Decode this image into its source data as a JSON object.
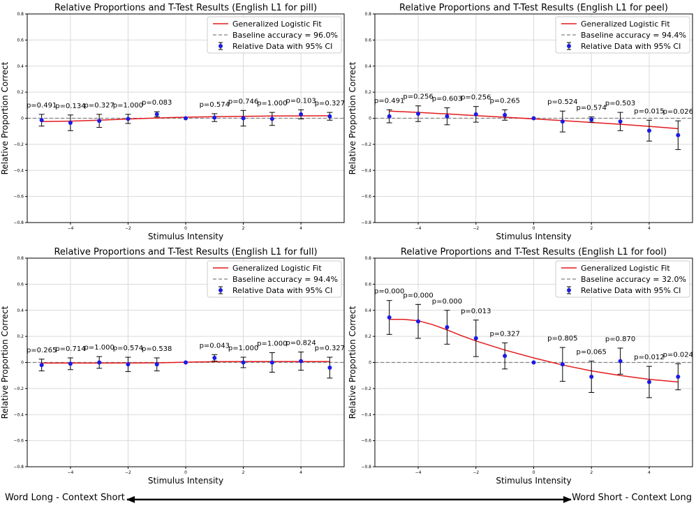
{
  "colors": {
    "fit": "#e31a1c",
    "baseline": "#808080",
    "points": "#1a1ae6",
    "grid": "#d9d9d9",
    "arrow": "#000000"
  },
  "footer": {
    "left_label": "Word Long - Context Short",
    "right_label": "Word Short - Context Long"
  },
  "chart_data": [
    {
      "type": "scatter",
      "title": "Relative Proportions and T-Test Results (English L1 for pill)",
      "xlabel": "Stimulus Intensity",
      "ylabel": "Relative Proportion Correct",
      "xlim": [
        -5.5,
        5.5
      ],
      "ylim": [
        -0.8,
        0.8
      ],
      "xticks": [
        -4,
        -2,
        0,
        2,
        4
      ],
      "yticks": [
        -0.8,
        -0.6,
        -0.4,
        -0.2,
        0.0,
        0.2,
        0.4,
        0.6,
        0.8
      ],
      "legend": {
        "fit": "Generalized Logistic Fit",
        "baseline": "Baseline accuracy = 96.0%",
        "data": "Relative Data with 95% CI"
      },
      "x": [
        -5,
        -4,
        -3,
        -2,
        -1,
        0,
        1,
        2,
        3,
        4,
        5
      ],
      "y": [
        -0.015,
        -0.035,
        -0.02,
        -0.005,
        0.03,
        0.0,
        0.005,
        0.0,
        -0.005,
        0.03,
        0.015
      ],
      "ci": [
        0.045,
        0.06,
        0.05,
        0.035,
        0.02,
        0.0,
        0.03,
        0.06,
        0.05,
        0.035,
        0.03
      ],
      "p_labels": [
        "p=0.491",
        "p=0.134",
        "p=0.327",
        "p=1.000",
        "p=0.083",
        "",
        "p=0.574",
        "p=0.746",
        "p=1.000",
        "p=0.103",
        "p=0.327"
      ],
      "fit": [
        [
          -5,
          -0.025
        ],
        [
          -4,
          -0.022
        ],
        [
          -3,
          -0.015
        ],
        [
          -2,
          -0.006
        ],
        [
          -1,
          0.002
        ],
        [
          0,
          0.008
        ],
        [
          1,
          0.012
        ],
        [
          2,
          0.015
        ],
        [
          3,
          0.017
        ],
        [
          4,
          0.018
        ],
        [
          5,
          0.019
        ]
      ]
    },
    {
      "type": "scatter",
      "title": "Relative Proportions and T-Test Results (English L1 for peel)",
      "xlabel": "Stimulus Intensity",
      "ylabel": "Relative Proportion Correct",
      "xlim": [
        -5.5,
        5.5
      ],
      "ylim": [
        -0.8,
        0.8
      ],
      "xticks": [
        -4,
        -2,
        0,
        2,
        4
      ],
      "yticks": [
        -0.8,
        -0.6,
        -0.4,
        -0.2,
        0.0,
        0.2,
        0.4,
        0.6,
        0.8
      ],
      "legend": {
        "fit": "Generalized Logistic Fit",
        "baseline": "Baseline accuracy = 94.4%",
        "data": "Relative Data with 95% CI"
      },
      "x": [
        -5,
        -4,
        -3,
        -2,
        -1,
        0,
        1,
        2,
        3,
        4,
        5
      ],
      "y": [
        0.015,
        0.035,
        0.015,
        0.03,
        0.025,
        0.0,
        -0.025,
        -0.01,
        -0.025,
        -0.095,
        -0.13
      ],
      "ci": [
        0.05,
        0.06,
        0.065,
        0.06,
        0.04,
        0.0,
        0.08,
        0.02,
        0.07,
        0.08,
        0.11
      ],
      "p_labels": [
        "p=0.491",
        "p=0.256",
        "p=0.603",
        "p=0.256",
        "p=0.265",
        "",
        "p=0.524",
        "p=0.574",
        "p=0.503",
        "p=0.015",
        "p=0.026"
      ],
      "fit": [
        [
          -5,
          0.055
        ],
        [
          -4,
          0.045
        ],
        [
          -3,
          0.033
        ],
        [
          -2,
          0.02
        ],
        [
          -1,
          0.008
        ],
        [
          0,
          -0.005
        ],
        [
          1,
          -0.018
        ],
        [
          2,
          -0.032
        ],
        [
          3,
          -0.046
        ],
        [
          4,
          -0.062
        ],
        [
          5,
          -0.08
        ]
      ]
    },
    {
      "type": "scatter",
      "title": "Relative Proportions and T-Test Results (English L1 for full)",
      "xlabel": "Stimulus Intensity",
      "ylabel": "Relative Proportion Correct",
      "xlim": [
        -5.5,
        5.5
      ],
      "ylim": [
        -0.8,
        0.8
      ],
      "xticks": [
        -4,
        -2,
        0,
        2,
        4
      ],
      "yticks": [
        -0.8,
        -0.6,
        -0.4,
        -0.2,
        0.0,
        0.2,
        0.4,
        0.6,
        0.8
      ],
      "legend": {
        "fit": "Generalized Logistic Fit",
        "baseline": "Baseline accuracy = 94.4%",
        "data": "Relative Data with 95% CI"
      },
      "x": [
        -5,
        -4,
        -3,
        -2,
        -1,
        0,
        1,
        2,
        3,
        4,
        5
      ],
      "y": [
        -0.02,
        -0.01,
        0.0,
        -0.015,
        -0.015,
        0.0,
        0.035,
        0.0,
        0.0,
        0.01,
        -0.04
      ],
      "ci": [
        0.045,
        0.045,
        0.045,
        0.055,
        0.05,
        0.0,
        0.025,
        0.04,
        0.075,
        0.07,
        0.08
      ],
      "p_labels": [
        "p=0.265",
        "p=0.714",
        "p=1.000",
        "p=0.574",
        "p=0.538",
        "",
        "p=0.043",
        "p=1.000",
        "p=1.000",
        "p=0.824",
        "p=0.327"
      ],
      "fit": [
        [
          -5,
          -0.005
        ],
        [
          -4,
          -0.005
        ],
        [
          -3,
          -0.005
        ],
        [
          -2,
          -0.004
        ],
        [
          -1,
          -0.003
        ],
        [
          0,
          0.002
        ],
        [
          1,
          0.006
        ],
        [
          2,
          0.007
        ],
        [
          3,
          0.007
        ],
        [
          4,
          0.007
        ],
        [
          5,
          0.007
        ]
      ]
    },
    {
      "type": "scatter",
      "title": "Relative Proportions and T-Test Results (English L1 for fool)",
      "xlabel": "Stimulus Intensity",
      "ylabel": "Relative Proportion Correct",
      "xlim": [
        -5.5,
        5.5
      ],
      "ylim": [
        -0.8,
        0.8
      ],
      "xticks": [
        -4,
        -2,
        0,
        2,
        4
      ],
      "yticks": [
        -0.8,
        -0.6,
        -0.4,
        -0.2,
        0.0,
        0.2,
        0.4,
        0.6,
        0.8
      ],
      "legend": {
        "fit": "Generalized Logistic Fit",
        "baseline": "Baseline accuracy = 32.0%",
        "data": "Relative Data with 95% CI"
      },
      "x": [
        -5,
        -4,
        -3,
        -2,
        -1,
        0,
        1,
        2,
        3,
        4,
        5
      ],
      "y": [
        0.345,
        0.315,
        0.27,
        0.185,
        0.05,
        0.0,
        -0.015,
        -0.11,
        0.01,
        -0.15,
        -0.11
      ],
      "ci": [
        0.13,
        0.13,
        0.13,
        0.14,
        0.1,
        0.0,
        0.13,
        0.12,
        0.1,
        0.12,
        0.1
      ],
      "p_labels": [
        "p=0.000",
        "p=0.000",
        "p=0.000",
        "p=0.013",
        "p=0.327",
        "",
        "p=0.805",
        "p=0.065",
        "p=0.870",
        "p=0.012",
        "p=0.024"
      ],
      "fit": [
        [
          -5,
          0.33
        ],
        [
          -4.5,
          0.33
        ],
        [
          -4,
          0.32
        ],
        [
          -3.5,
          0.29
        ],
        [
          -3,
          0.25
        ],
        [
          -2.5,
          0.205
        ],
        [
          -2,
          0.165
        ],
        [
          -1,
          0.095
        ],
        [
          0,
          0.035
        ],
        [
          1,
          -0.02
        ],
        [
          2,
          -0.065
        ],
        [
          3,
          -0.1
        ],
        [
          4,
          -0.13
        ],
        [
          5,
          -0.15
        ]
      ]
    }
  ]
}
